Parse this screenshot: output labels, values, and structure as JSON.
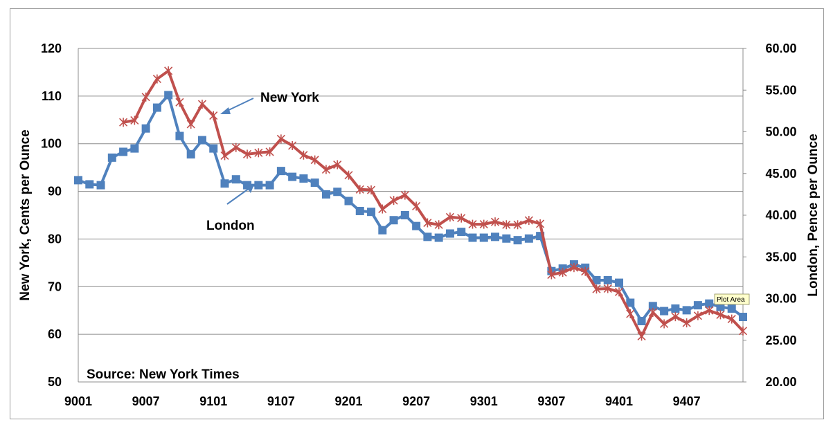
{
  "chart_data": {
    "type": "line",
    "source_note": "Source:  New York Times",
    "left_axis": {
      "label": "New York, Cents per Ounce",
      "ylim": [
        50,
        120
      ],
      "ticks": [
        "50",
        "60",
        "70",
        "80",
        "90",
        "100",
        "110",
        "120"
      ]
    },
    "right_axis": {
      "label": "London, Pence per Ounce",
      "ylim": [
        20,
        60
      ],
      "ticks": [
        "20.00",
        "25.00",
        "30.00",
        "35.00",
        "40.00",
        "45.00",
        "50.00",
        "55.00",
        "60.00"
      ]
    },
    "x_ticks": [
      "9001",
      "9007",
      "9101",
      "9107",
      "9201",
      "9207",
      "9301",
      "9307",
      "9401",
      "9407"
    ],
    "grid": true,
    "annotations": [
      {
        "text": "New York",
        "series": "New York"
      },
      {
        "text": "London",
        "series": "London"
      }
    ],
    "tooltip": "Plot Area",
    "series": [
      {
        "name": "New York",
        "axis": "left",
        "color": "#c0504d",
        "marker": "star",
        "values": [
          null,
          null,
          null,
          null,
          104.5,
          104.9,
          109.8,
          113.6,
          115.3,
          108.7,
          104.1,
          108.3,
          105.9,
          97.5,
          99.2,
          97.8,
          98.1,
          98.3,
          101.0,
          99.6,
          97.6,
          96.6,
          94.6,
          95.6,
          93.4,
          90.4,
          90.3,
          86.3,
          88.1,
          89.2,
          86.9,
          83.4,
          83.0,
          84.6,
          84.4,
          83.1,
          83.1,
          83.6,
          83.0,
          83.0,
          83.9,
          83.2,
          72.5,
          73.0,
          74.0,
          73.2,
          69.5,
          69.6,
          68.9,
          64.3,
          59.6,
          64.6,
          62.2,
          63.7,
          62.4,
          63.9,
          65.0,
          64.1,
          63.2,
          60.7
        ]
      },
      {
        "name": "London",
        "axis": "right",
        "color": "#4f81bd",
        "marker": "square",
        "values": [
          44.2,
          43.7,
          43.6,
          46.9,
          47.6,
          48.0,
          50.4,
          52.9,
          54.4,
          49.5,
          47.3,
          49.0,
          48.0,
          43.8,
          44.3,
          43.6,
          43.6,
          43.6,
          45.3,
          44.6,
          44.4,
          43.9,
          42.5,
          42.8,
          41.7,
          40.5,
          40.4,
          38.2,
          39.4,
          40.0,
          38.7,
          37.4,
          37.3,
          37.8,
          38.0,
          37.3,
          37.3,
          37.4,
          37.2,
          37.0,
          37.2,
          37.5,
          33.3,
          33.6,
          34.1,
          33.7,
          32.2,
          32.2,
          31.9,
          29.5,
          27.3,
          29.1,
          28.5,
          28.8,
          28.6,
          29.2,
          29.4,
          29.0,
          28.8,
          27.8
        ]
      }
    ]
  }
}
